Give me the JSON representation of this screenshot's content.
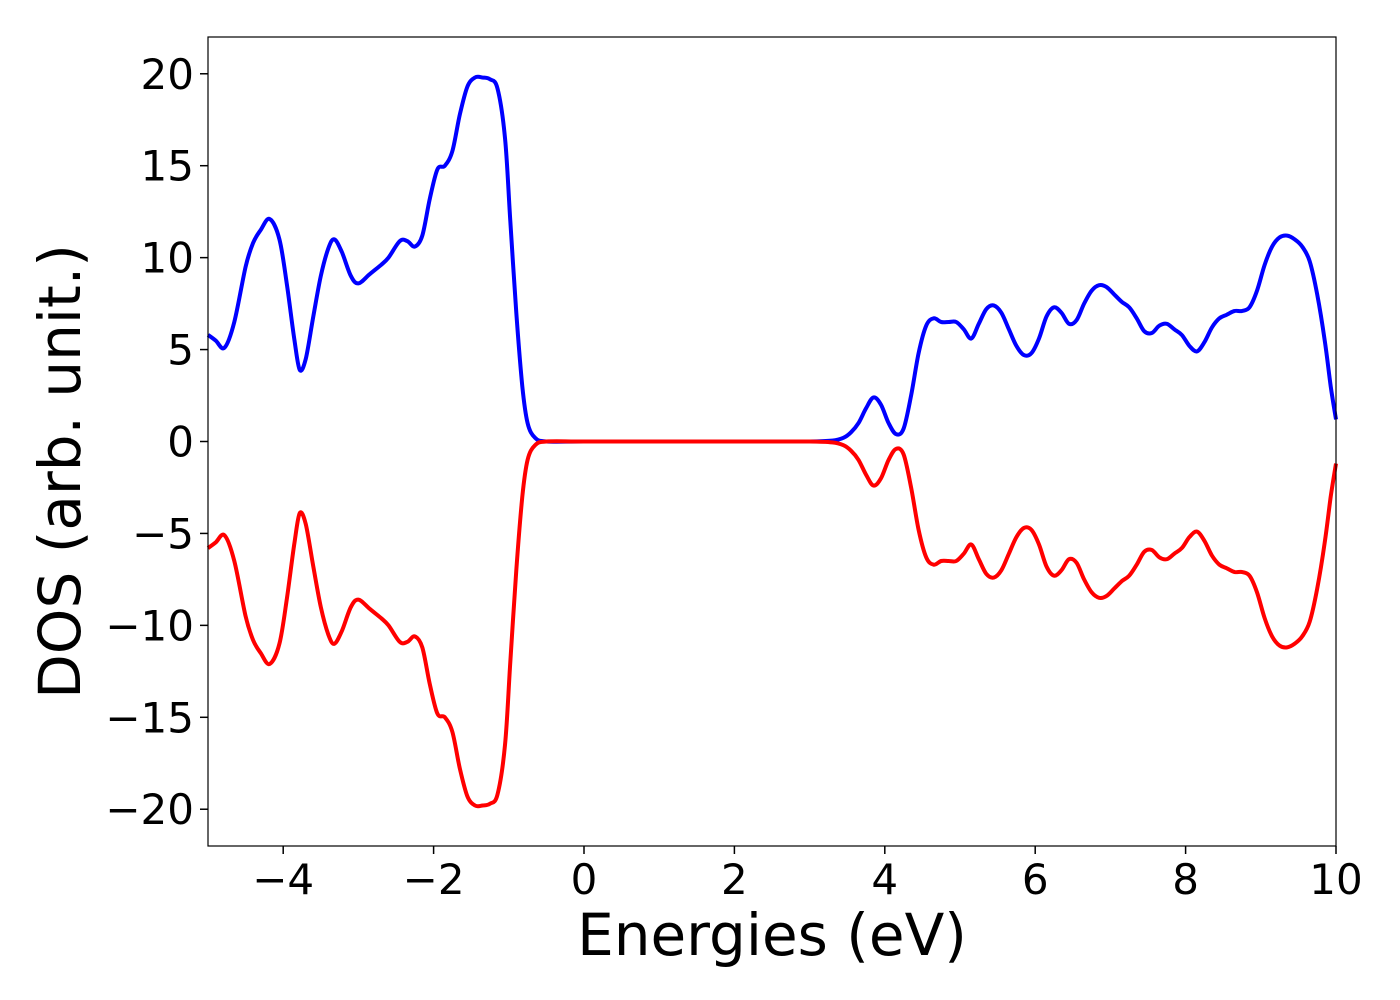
{
  "chart_data": {
    "type": "line",
    "title": "",
    "xlabel": "Energies (eV)",
    "ylabel": "DOS (arb. unit.)",
    "xlim": [
      -5,
      10
    ],
    "ylim": [
      -22,
      22
    ],
    "grid": false,
    "xticks": [
      -4,
      -2,
      0,
      2,
      4,
      6,
      8,
      10
    ],
    "xtick_labels": [
      "−4",
      "−2",
      "0",
      "2",
      "4",
      "6",
      "8",
      "10"
    ],
    "yticks": [
      20,
      15,
      10,
      5,
      0,
      -5,
      -10,
      -15,
      -20
    ],
    "ytick_labels": [
      "20",
      "15",
      "10",
      "5",
      "0",
      "−5",
      "−10",
      "−15",
      "−20"
    ],
    "series": [
      {
        "color": "#0000ff",
        "points": [
          [
            -5.0,
            5.8
          ],
          [
            -4.9,
            5.5
          ],
          [
            -4.78,
            5.1
          ],
          [
            -4.65,
            6.5
          ],
          [
            -4.5,
            9.5
          ],
          [
            -4.4,
            10.8
          ],
          [
            -4.3,
            11.5
          ],
          [
            -4.18,
            12.1
          ],
          [
            -4.05,
            11.0
          ],
          [
            -3.95,
            8.5
          ],
          [
            -3.85,
            5.5
          ],
          [
            -3.78,
            3.9
          ],
          [
            -3.7,
            4.5
          ],
          [
            -3.6,
            6.8
          ],
          [
            -3.5,
            9.0
          ],
          [
            -3.4,
            10.5
          ],
          [
            -3.32,
            11.0
          ],
          [
            -3.22,
            10.3
          ],
          [
            -3.1,
            9.0
          ],
          [
            -3.0,
            8.6
          ],
          [
            -2.85,
            9.1
          ],
          [
            -2.7,
            9.6
          ],
          [
            -2.6,
            10.0
          ],
          [
            -2.45,
            10.9
          ],
          [
            -2.35,
            10.9
          ],
          [
            -2.25,
            10.6
          ],
          [
            -2.15,
            11.2
          ],
          [
            -2.05,
            13.2
          ],
          [
            -1.95,
            14.8
          ],
          [
            -1.85,
            15.0
          ],
          [
            -1.75,
            15.8
          ],
          [
            -1.65,
            17.8
          ],
          [
            -1.55,
            19.3
          ],
          [
            -1.45,
            19.8
          ],
          [
            -1.35,
            19.8
          ],
          [
            -1.25,
            19.7
          ],
          [
            -1.15,
            19.2
          ],
          [
            -1.05,
            16.5
          ],
          [
            -0.98,
            12.0
          ],
          [
            -0.9,
            7.0
          ],
          [
            -0.82,
            3.0
          ],
          [
            -0.75,
            1.0
          ],
          [
            -0.65,
            0.2
          ],
          [
            -0.5,
            0.0
          ],
          [
            0.0,
            0.0
          ],
          [
            1.0,
            0.0
          ],
          [
            2.0,
            0.0
          ],
          [
            3.0,
            0.0
          ],
          [
            3.3,
            0.05
          ],
          [
            3.45,
            0.2
          ],
          [
            3.55,
            0.5
          ],
          [
            3.65,
            1.0
          ],
          [
            3.75,
            1.8
          ],
          [
            3.85,
            2.4
          ],
          [
            3.95,
            2.0
          ],
          [
            4.05,
            1.0
          ],
          [
            4.15,
            0.4
          ],
          [
            4.25,
            0.7
          ],
          [
            4.35,
            2.5
          ],
          [
            4.45,
            4.8
          ],
          [
            4.55,
            6.3
          ],
          [
            4.65,
            6.7
          ],
          [
            4.75,
            6.5
          ],
          [
            4.85,
            6.5
          ],
          [
            4.95,
            6.5
          ],
          [
            5.05,
            6.1
          ],
          [
            5.15,
            5.6
          ],
          [
            5.25,
            6.4
          ],
          [
            5.35,
            7.2
          ],
          [
            5.45,
            7.4
          ],
          [
            5.55,
            7.0
          ],
          [
            5.65,
            6.1
          ],
          [
            5.75,
            5.2
          ],
          [
            5.85,
            4.7
          ],
          [
            5.95,
            4.8
          ],
          [
            6.05,
            5.6
          ],
          [
            6.15,
            6.8
          ],
          [
            6.25,
            7.3
          ],
          [
            6.35,
            7.0
          ],
          [
            6.45,
            6.4
          ],
          [
            6.55,
            6.6
          ],
          [
            6.65,
            7.5
          ],
          [
            6.75,
            8.2
          ],
          [
            6.85,
            8.5
          ],
          [
            6.95,
            8.4
          ],
          [
            7.05,
            8.0
          ],
          [
            7.15,
            7.6
          ],
          [
            7.25,
            7.3
          ],
          [
            7.35,
            6.7
          ],
          [
            7.45,
            6.0
          ],
          [
            7.55,
            5.9
          ],
          [
            7.65,
            6.3
          ],
          [
            7.75,
            6.4
          ],
          [
            7.85,
            6.1
          ],
          [
            7.95,
            5.8
          ],
          [
            8.05,
            5.2
          ],
          [
            8.15,
            4.9
          ],
          [
            8.25,
            5.4
          ],
          [
            8.35,
            6.2
          ],
          [
            8.45,
            6.7
          ],
          [
            8.55,
            6.9
          ],
          [
            8.65,
            7.1
          ],
          [
            8.75,
            7.1
          ],
          [
            8.85,
            7.3
          ],
          [
            8.95,
            8.2
          ],
          [
            9.05,
            9.6
          ],
          [
            9.15,
            10.6
          ],
          [
            9.25,
            11.1
          ],
          [
            9.35,
            11.2
          ],
          [
            9.45,
            11.0
          ],
          [
            9.55,
            10.6
          ],
          [
            9.65,
            9.8
          ],
          [
            9.75,
            8.0
          ],
          [
            9.85,
            5.5
          ],
          [
            9.93,
            3.0
          ],
          [
            10.0,
            1.2
          ]
        ]
      },
      {
        "color": "#ff0000",
        "points": [
          [
            -5.0,
            -5.8
          ],
          [
            -4.9,
            -5.5
          ],
          [
            -4.78,
            -5.1
          ],
          [
            -4.65,
            -6.5
          ],
          [
            -4.5,
            -9.5
          ],
          [
            -4.4,
            -10.8
          ],
          [
            -4.3,
            -11.5
          ],
          [
            -4.18,
            -12.1
          ],
          [
            -4.05,
            -11.0
          ],
          [
            -3.95,
            -8.5
          ],
          [
            -3.85,
            -5.5
          ],
          [
            -3.78,
            -3.9
          ],
          [
            -3.7,
            -4.5
          ],
          [
            -3.6,
            -6.8
          ],
          [
            -3.5,
            -9.0
          ],
          [
            -3.4,
            -10.5
          ],
          [
            -3.32,
            -11.0
          ],
          [
            -3.22,
            -10.3
          ],
          [
            -3.1,
            -9.0
          ],
          [
            -3.0,
            -8.6
          ],
          [
            -2.85,
            -9.1
          ],
          [
            -2.7,
            -9.6
          ],
          [
            -2.6,
            -10.0
          ],
          [
            -2.45,
            -10.9
          ],
          [
            -2.35,
            -10.9
          ],
          [
            -2.25,
            -10.6
          ],
          [
            -2.15,
            -11.2
          ],
          [
            -2.05,
            -13.2
          ],
          [
            -1.95,
            -14.8
          ],
          [
            -1.85,
            -15.0
          ],
          [
            -1.75,
            -15.8
          ],
          [
            -1.65,
            -17.8
          ],
          [
            -1.55,
            -19.3
          ],
          [
            -1.45,
            -19.8
          ],
          [
            -1.35,
            -19.8
          ],
          [
            -1.25,
            -19.7
          ],
          [
            -1.15,
            -19.2
          ],
          [
            -1.05,
            -16.5
          ],
          [
            -0.98,
            -12.0
          ],
          [
            -0.9,
            -7.0
          ],
          [
            -0.82,
            -3.0
          ],
          [
            -0.75,
            -1.0
          ],
          [
            -0.65,
            -0.2
          ],
          [
            -0.5,
            0.0
          ],
          [
            0.0,
            0.0
          ],
          [
            1.0,
            0.0
          ],
          [
            2.0,
            0.0
          ],
          [
            3.0,
            0.0
          ],
          [
            3.3,
            -0.05
          ],
          [
            3.45,
            -0.2
          ],
          [
            3.55,
            -0.5
          ],
          [
            3.65,
            -1.0
          ],
          [
            3.75,
            -1.8
          ],
          [
            3.85,
            -2.4
          ],
          [
            3.95,
            -2.0
          ],
          [
            4.05,
            -1.0
          ],
          [
            4.15,
            -0.4
          ],
          [
            4.25,
            -0.7
          ],
          [
            4.35,
            -2.5
          ],
          [
            4.45,
            -4.8
          ],
          [
            4.55,
            -6.3
          ],
          [
            4.65,
            -6.7
          ],
          [
            4.75,
            -6.5
          ],
          [
            4.85,
            -6.5
          ],
          [
            4.95,
            -6.5
          ],
          [
            5.05,
            -6.1
          ],
          [
            5.15,
            -5.6
          ],
          [
            5.25,
            -6.4
          ],
          [
            5.35,
            -7.2
          ],
          [
            5.45,
            -7.4
          ],
          [
            5.55,
            -7.0
          ],
          [
            5.65,
            -6.1
          ],
          [
            5.75,
            -5.2
          ],
          [
            5.85,
            -4.7
          ],
          [
            5.95,
            -4.8
          ],
          [
            6.05,
            -5.6
          ],
          [
            6.15,
            -6.8
          ],
          [
            6.25,
            -7.3
          ],
          [
            6.35,
            -7.0
          ],
          [
            6.45,
            -6.4
          ],
          [
            6.55,
            -6.6
          ],
          [
            6.65,
            -7.5
          ],
          [
            6.75,
            -8.2
          ],
          [
            6.85,
            -8.5
          ],
          [
            6.95,
            -8.4
          ],
          [
            7.05,
            -8.0
          ],
          [
            7.15,
            -7.6
          ],
          [
            7.25,
            -7.3
          ],
          [
            7.35,
            -6.7
          ],
          [
            7.45,
            -6.0
          ],
          [
            7.55,
            -5.9
          ],
          [
            7.65,
            -6.3
          ],
          [
            7.75,
            -6.4
          ],
          [
            7.85,
            -6.1
          ],
          [
            7.95,
            -5.8
          ],
          [
            8.05,
            -5.2
          ],
          [
            8.15,
            -4.9
          ],
          [
            8.25,
            -5.4
          ],
          [
            8.35,
            -6.2
          ],
          [
            8.45,
            -6.7
          ],
          [
            8.55,
            -6.9
          ],
          [
            8.65,
            -7.1
          ],
          [
            8.75,
            -7.1
          ],
          [
            8.85,
            -7.3
          ],
          [
            8.95,
            -8.2
          ],
          [
            9.05,
            -9.6
          ],
          [
            9.15,
            -10.6
          ],
          [
            9.25,
            -11.1
          ],
          [
            9.35,
            -11.2
          ],
          [
            9.45,
            -11.0
          ],
          [
            9.55,
            -10.6
          ],
          [
            9.65,
            -9.8
          ],
          [
            9.75,
            -8.0
          ],
          [
            9.85,
            -5.5
          ],
          [
            9.93,
            -3.0
          ],
          [
            10.0,
            -1.2
          ]
        ]
      }
    ]
  }
}
